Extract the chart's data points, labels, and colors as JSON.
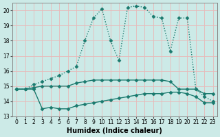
{
  "title": "",
  "xlabel": "Humidex (Indice chaleur)",
  "ylabel": "",
  "bg_color": "#cceae7",
  "grid_color": "#b0d8d4",
  "line_color": "#1a7a6e",
  "xlim": [
    -0.5,
    23.5
  ],
  "ylim": [
    13,
    20.5
  ],
  "yticks": [
    13,
    14,
    15,
    16,
    17,
    18,
    19,
    20
  ],
  "xticks": [
    0,
    1,
    2,
    3,
    4,
    5,
    6,
    7,
    8,
    9,
    10,
    11,
    12,
    13,
    14,
    15,
    16,
    17,
    18,
    19,
    20,
    21,
    22,
    23
  ],
  "series": [
    {
      "x": [
        0,
        1,
        2,
        3,
        4,
        5,
        6,
        7,
        8,
        9,
        10,
        11,
        12,
        13,
        14,
        15,
        16,
        17,
        18,
        19,
        20,
        21,
        22,
        23
      ],
      "y": [
        14.8,
        14.8,
        15.1,
        15.3,
        15.5,
        15.7,
        16.0,
        16.3,
        18.0,
        19.5,
        20.1,
        18.0,
        16.7,
        20.2,
        20.3,
        20.2,
        19.6,
        19.5,
        17.3,
        19.5,
        19.5,
        14.8,
        14.3,
        14.0
      ],
      "linestyle": "dotted",
      "marker": "D",
      "markersize": 2.5,
      "linewidth": 1.0
    },
    {
      "x": [
        0,
        1,
        2,
        3,
        4,
        5,
        6,
        7,
        8,
        9,
        10,
        11,
        12,
        13,
        14,
        15,
        16,
        17,
        18,
        19,
        20,
        21,
        22,
        23
      ],
      "y": [
        14.8,
        14.8,
        14.9,
        15.0,
        15.0,
        15.0,
        15.0,
        15.2,
        15.3,
        15.4,
        15.4,
        15.4,
        15.4,
        15.4,
        15.4,
        15.4,
        15.4,
        15.4,
        15.3,
        14.8,
        14.8,
        14.8,
        14.5,
        14.5
      ],
      "linestyle": "solid",
      "marker": "D",
      "markersize": 2.5,
      "linewidth": 1.0
    },
    {
      "x": [
        0,
        1,
        2,
        3,
        4,
        5,
        6,
        7,
        8,
        9,
        10,
        11,
        12,
        13,
        14,
        15,
        16,
        17,
        18,
        19,
        20,
        21,
        22,
        23
      ],
      "y": [
        14.8,
        14.8,
        14.8,
        13.5,
        13.6,
        13.5,
        13.5,
        13.7,
        13.8,
        13.9,
        14.0,
        14.1,
        14.2,
        14.3,
        14.4,
        14.5,
        14.5,
        14.5,
        14.6,
        14.6,
        14.5,
        14.3,
        13.9,
        13.9
      ],
      "linestyle": "solid",
      "marker": "D",
      "markersize": 2.5,
      "linewidth": 1.0
    }
  ]
}
